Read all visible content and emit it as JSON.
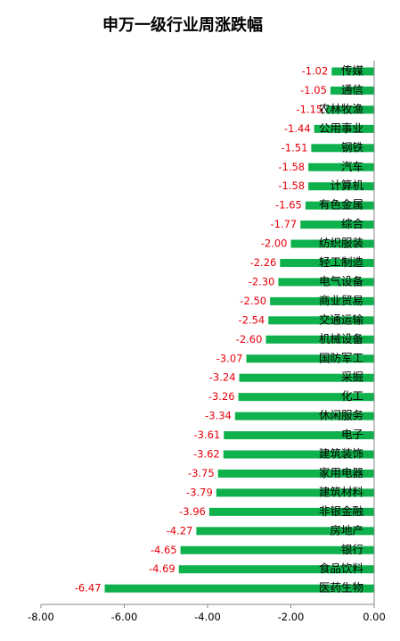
{
  "chart_data": {
    "type": "bar",
    "orientation": "horizontal",
    "title": "申万一级行业周涨跌幅",
    "xlabel": "",
    "ylabel": "",
    "xlim": [
      -8,
      0
    ],
    "x_ticks": [
      "-8.00",
      "-6.00",
      "-4.00",
      "-2.00",
      "0.00"
    ],
    "categories": [
      "传媒",
      "通信",
      "农林牧渔",
      "公用事业",
      "钢铁",
      "汽车",
      "计算机",
      "有色金属",
      "综合",
      "纺织服装",
      "轻工制造",
      "电气设备",
      "商业贸易",
      "交通运输",
      "机械设备",
      "国防军工",
      "采掘",
      "化工",
      "休闲服务",
      "电子",
      "建筑装饰",
      "家用电器",
      "建筑材料",
      "非银金融",
      "房地产",
      "银行",
      "食品饮料",
      "医药生物"
    ],
    "values": [
      -1.02,
      -1.05,
      -1.15,
      -1.44,
      -1.51,
      -1.58,
      -1.58,
      -1.65,
      -1.77,
      -2.0,
      -2.26,
      -2.3,
      -2.5,
      -2.54,
      -2.6,
      -3.07,
      -3.24,
      -3.26,
      -3.34,
      -3.61,
      -3.62,
      -3.75,
      -3.79,
      -3.96,
      -4.27,
      -4.65,
      -4.69,
      -6.47
    ],
    "value_labels": [
      "-1.02",
      "-1.05",
      "-1.15",
      "-1.44",
      "-1.51",
      "-1.58",
      "-1.58",
      "-1.65",
      "-1.77",
      "-2.00",
      "-2.26",
      "-2.30",
      "-2.50",
      "-2.54",
      "-2.60",
      "-3.07",
      "-3.24",
      "-3.26",
      "-3.34",
      "-3.61",
      "-3.62",
      "-3.75",
      "-3.79",
      "-3.96",
      "-4.27",
      "-4.65",
      "-4.69",
      "-6.47"
    ],
    "grid": false,
    "legend": "none",
    "colors": {
      "bar": "#0FB14C",
      "value_label": "#E8000B",
      "axis": "#888888",
      "text": "#000000"
    }
  }
}
